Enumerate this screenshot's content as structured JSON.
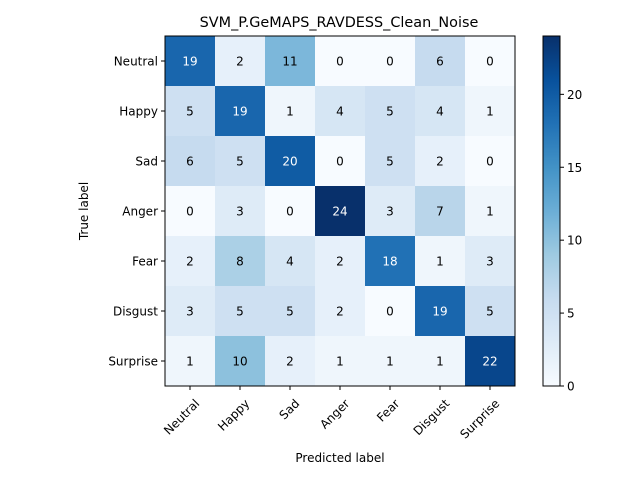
{
  "chart_data": {
    "type": "heatmap",
    "title": "SVM_P.GeMAPS_RAVDESS_Clean_Noise",
    "xlabel": "Predicted label",
    "ylabel": "True label",
    "x_categories": [
      "Neutral",
      "Happy",
      "Sad",
      "Anger",
      "Fear",
      "Disgust",
      "Surprise"
    ],
    "y_categories": [
      "Neutral",
      "Happy",
      "Sad",
      "Anger",
      "Fear",
      "Disgust",
      "Surprise"
    ],
    "matrix": [
      [
        19,
        2,
        11,
        0,
        0,
        6,
        0
      ],
      [
        5,
        19,
        1,
        4,
        5,
        4,
        1
      ],
      [
        6,
        5,
        20,
        0,
        5,
        2,
        0
      ],
      [
        0,
        3,
        0,
        24,
        3,
        7,
        1
      ],
      [
        2,
        8,
        4,
        2,
        18,
        1,
        3
      ],
      [
        3,
        5,
        5,
        2,
        0,
        19,
        5
      ],
      [
        1,
        10,
        2,
        1,
        1,
        1,
        22
      ]
    ],
    "colormap": "Blues",
    "value_range": [
      0,
      24
    ],
    "colorbar": {
      "ticks": [
        "0",
        "5",
        "10",
        "15",
        "20"
      ]
    },
    "grid": false,
    "legend": "colorbar-right"
  }
}
